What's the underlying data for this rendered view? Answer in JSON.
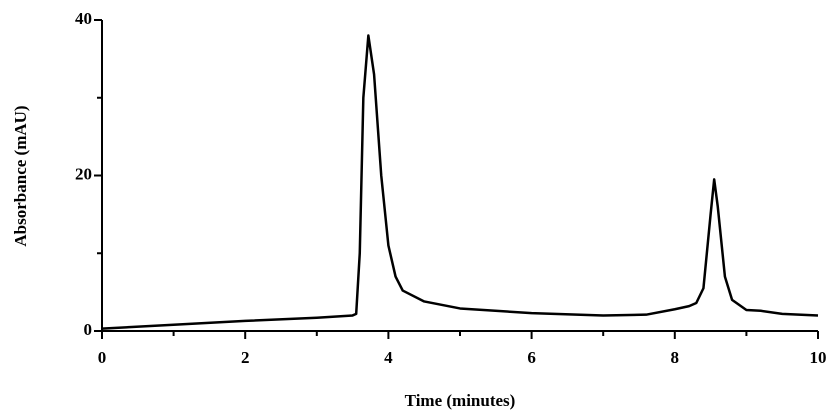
{
  "chart_data": {
    "type": "line",
    "x_label": "Time (minutes)",
    "y_label": "Absorbance (mAU)",
    "x": [
      0,
      1,
      2,
      3,
      3.5,
      3.55,
      3.6,
      3.65,
      3.72,
      3.8,
      3.9,
      4.0,
      4.1,
      4.2,
      4.5,
      5,
      6,
      7,
      7.6,
      8.0,
      8.2,
      8.3,
      8.4,
      8.5,
      8.55,
      8.6,
      8.7,
      8.8,
      9.0,
      9.2,
      9.5,
      10
    ],
    "values": [
      0.3,
      0.8,
      1.3,
      1.7,
      2.0,
      2.2,
      10,
      30,
      38,
      33,
      20,
      11,
      7,
      5.2,
      3.8,
      2.9,
      2.3,
      2.0,
      2.1,
      2.8,
      3.2,
      3.6,
      5.5,
      15,
      19.5,
      16,
      7,
      4,
      2.7,
      2.6,
      2.2,
      2.0
    ],
    "color": "#000000",
    "xlim": [
      0,
      10
    ],
    "xticks": [
      0,
      2,
      4,
      6,
      8,
      10
    ],
    "xminorticks": [
      1,
      3,
      5,
      7,
      9
    ],
    "ylim": [
      0,
      40
    ],
    "yticks": [
      0,
      20,
      40
    ],
    "yminorticks": [
      10,
      30
    ],
    "grid": false
  }
}
